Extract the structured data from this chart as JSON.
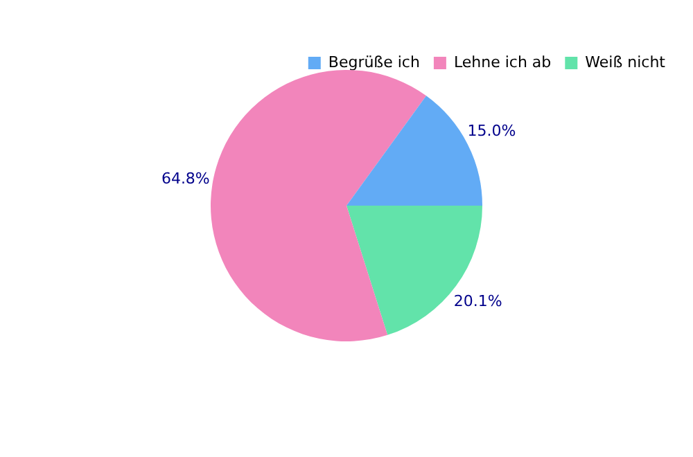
{
  "chart_data": {
    "type": "pie",
    "categories": [
      "Begrüße ich",
      "Lehne ich ab",
      "Weiß nicht"
    ],
    "values": [
      15.0,
      64.8,
      20.1
    ],
    "colors": [
      "#62abf5",
      "#f285bb",
      "#62e3aa"
    ],
    "value_labels": [
      "15.0%",
      "64.8%",
      "20.1%"
    ],
    "legend": "top right"
  }
}
